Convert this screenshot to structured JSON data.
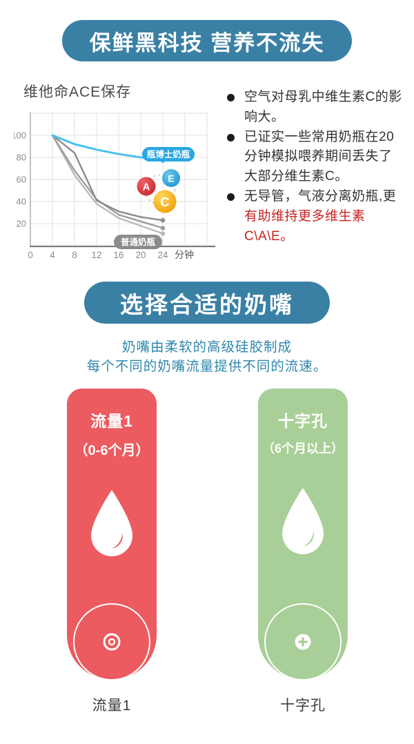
{
  "page": {
    "bg": "#ffffff",
    "accent_blue": "#3a80a5",
    "text_teal": "#2f86ad"
  },
  "header_banner": {
    "title": "保鲜黑科技 营养不流失"
  },
  "chart_data": {
    "type": "line",
    "title": "维他命ACE保存",
    "x_unit_label": "分钟",
    "x_ticks": [
      0,
      4,
      8,
      12,
      16,
      20,
      24
    ],
    "y_ticks": [
      20,
      40,
      60,
      80,
      100
    ],
    "x_range": [
      0,
      32
    ],
    "y_range": [
      0,
      120
    ],
    "grid": true,
    "x": [
      4,
      8,
      12,
      16,
      20,
      24
    ],
    "series": [
      {
        "name": "瓶博士奶瓶",
        "color": "#47c1f0",
        "values": [
          100,
          92,
          87,
          83,
          80,
          77
        ]
      },
      {
        "name": "普通奶瓶-1",
        "color": "#8a8a8a",
        "values": [
          100,
          84,
          41,
          31,
          26,
          23
        ]
      },
      {
        "name": "普通奶瓶-2",
        "color": "#9c9c9c",
        "values": [
          100,
          68,
          42,
          28,
          22,
          16
        ]
      },
      {
        "name": "普通奶瓶-3",
        "color": "#b9b9b9",
        "values": [
          100,
          64,
          38,
          25,
          18,
          11
        ]
      }
    ],
    "annotations": {
      "blue_badge": "瓶博士奶瓶",
      "blue_badge_color": "#29a7e1",
      "gray_badge": "普通奶瓶",
      "gray_badge_color": "#8b8b8b",
      "vitamins": [
        {
          "label": "A",
          "color": "#c5262c",
          "color_light": "#ee6166"
        },
        {
          "label": "E",
          "color": "#1f95d0",
          "color_light": "#6cc6ec"
        },
        {
          "label": "C",
          "color": "#f09a00",
          "color_light": "#ffd95e"
        }
      ]
    }
  },
  "notes": {
    "red_color": "#c92222",
    "items": [
      {
        "text": "空气对母乳中维生素C的影响大。"
      },
      {
        "text": "已证实一些常用奶瓶在20分钟模拟喂养期间丢失了大部分维生素C。"
      },
      {
        "text_dark": "无导管，气液分离奶瓶,更",
        "text_red": "有助维持更多维生素C\\A\\E。"
      }
    ]
  },
  "nipple_section": {
    "banner_title": "选择合适的奶嘴",
    "subtitle_lines": [
      "奶嘴由柔软的高级硅胶制成",
      "每个不同的奶嘴流量提供不同的流速。"
    ],
    "cards": [
      {
        "title": "流量1",
        "subtitle": "（0-6个月）",
        "bottom_label": "流量1",
        "color": "#ec5b5f",
        "icon": "target-icon"
      },
      {
        "title": "十字孔",
        "subtitle": "（6个月以上）",
        "bottom_label": "十字孔",
        "color": "#a8cf97",
        "icon": "plus-icon"
      }
    ]
  }
}
